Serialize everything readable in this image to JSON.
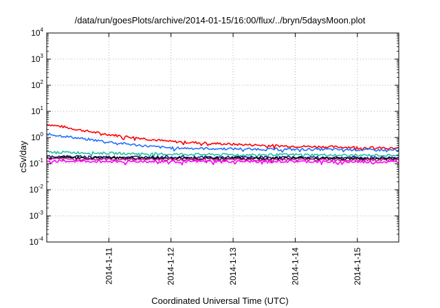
{
  "chart_data": {
    "type": "line",
    "title": "/data/run/goesPlots/archive/2014-01-15/16:00/flux/../bryn/5daysMoon.plot",
    "xlabel": "Coordinated Universal Time (UTC)",
    "ylabel": "cSv/day",
    "yscale": "log",
    "ylim": [
      0.0001,
      10000
    ],
    "xlim": [
      "2014-01-10 00:00",
      "2014-01-15 16:00"
    ],
    "y_ticks": [
      {
        "base": "10",
        "exp": "-4",
        "value": 0.0001
      },
      {
        "base": "10",
        "exp": "-3",
        "value": 0.001
      },
      {
        "base": "10",
        "exp": "-2",
        "value": 0.01
      },
      {
        "base": "10",
        "exp": "-1",
        "value": 0.1
      },
      {
        "base": "10",
        "exp": "0",
        "value": 1
      },
      {
        "base": "10",
        "exp": "1",
        "value": 10
      },
      {
        "base": "10",
        "exp": "2",
        "value": 100
      },
      {
        "base": "10",
        "exp": "3",
        "value": 1000
      },
      {
        "base": "10",
        "exp": "4",
        "value": 10000
      }
    ],
    "x_ticks": [
      {
        "label": "2014-1-11",
        "value": "2014-01-11 00:00"
      },
      {
        "label": "2014-1-12",
        "value": "2014-01-12 00:00"
      },
      {
        "label": "2014-1-13",
        "value": "2014-01-13 00:00"
      },
      {
        "label": "2014-1-14",
        "value": "2014-01-14 00:00"
      },
      {
        "label": "2014-1-15",
        "value": "2014-01-15 00:00"
      }
    ],
    "grid": true,
    "series": [
      {
        "color": "#ff0000",
        "x": [
          "2014-01-10 00:00",
          "2014-01-10 06:00",
          "2014-01-10 12:00",
          "2014-01-10 18:00",
          "2014-01-11 00:00",
          "2014-01-11 06:00",
          "2014-01-11 12:00",
          "2014-01-11 18:00",
          "2014-01-12 00:00",
          "2014-01-12 12:00",
          "2014-01-13 00:00",
          "2014-01-13 12:00",
          "2014-01-14 00:00",
          "2014-01-14 12:00",
          "2014-01-15 00:00",
          "2014-01-15 08:00",
          "2014-01-15 16:00"
        ],
        "values": [
          3.2,
          2.6,
          2.0,
          1.6,
          1.3,
          1.1,
          0.95,
          0.8,
          0.7,
          0.62,
          0.55,
          0.5,
          0.46,
          0.44,
          0.42,
          0.4,
          0.38
        ]
      },
      {
        "color": "#1f6fff",
        "x": [
          "2014-01-10 00:00",
          "2014-01-10 06:00",
          "2014-01-10 12:00",
          "2014-01-10 18:00",
          "2014-01-11 00:00",
          "2014-01-11 06:00",
          "2014-01-11 12:00",
          "2014-01-11 18:00",
          "2014-01-12 00:00",
          "2014-01-12 12:00",
          "2014-01-13 00:00",
          "2014-01-13 12:00",
          "2014-01-14 00:00",
          "2014-01-14 12:00",
          "2014-01-15 00:00",
          "2014-01-15 08:00",
          "2014-01-15 16:00"
        ],
        "values": [
          1.35,
          1.15,
          0.95,
          0.8,
          0.68,
          0.58,
          0.5,
          0.44,
          0.4,
          0.38,
          0.37,
          0.36,
          0.35,
          0.35,
          0.34,
          0.33,
          0.33
        ]
      },
      {
        "color": "#20c0a0",
        "x": [
          "2014-01-10 00:00",
          "2014-01-11 00:00",
          "2014-01-12 00:00",
          "2014-01-13 00:00",
          "2014-01-14 00:00",
          "2014-01-15 00:00",
          "2014-01-15 16:00"
        ],
        "values": [
          0.28,
          0.25,
          0.23,
          0.22,
          0.22,
          0.21,
          0.21
        ]
      },
      {
        "color": "#1a1a8c",
        "x": [
          "2014-01-10 00:00",
          "2014-01-11 00:00",
          "2014-01-12 00:00",
          "2014-01-13 00:00",
          "2014-01-14 00:00",
          "2014-01-15 00:00",
          "2014-01-15 16:00"
        ],
        "values": [
          0.19,
          0.18,
          0.18,
          0.175,
          0.175,
          0.17,
          0.17
        ]
      },
      {
        "color": "#000000",
        "x": [
          "2014-01-10 00:00",
          "2014-01-11 00:00",
          "2014-01-12 00:00",
          "2014-01-13 00:00",
          "2014-01-14 00:00",
          "2014-01-15 00:00",
          "2014-01-15 16:00"
        ],
        "values": [
          0.17,
          0.165,
          0.16,
          0.16,
          0.16,
          0.155,
          0.155
        ]
      },
      {
        "color": "#c0208a",
        "x": [
          "2014-01-10 00:00",
          "2014-01-11 00:00",
          "2014-01-12 00:00",
          "2014-01-13 00:00",
          "2014-01-14 00:00",
          "2014-01-15 00:00",
          "2014-01-15 16:00"
        ],
        "values": [
          0.15,
          0.145,
          0.145,
          0.14,
          0.14,
          0.14,
          0.14
        ]
      },
      {
        "color": "#ff00ff",
        "x": [
          "2014-01-10 00:00",
          "2014-01-11 00:00",
          "2014-01-12 00:00",
          "2014-01-13 00:00",
          "2014-01-14 00:00",
          "2014-01-15 00:00",
          "2014-01-15 16:00"
        ],
        "values": [
          0.125,
          0.12,
          0.12,
          0.12,
          0.12,
          0.115,
          0.115
        ]
      }
    ]
  }
}
